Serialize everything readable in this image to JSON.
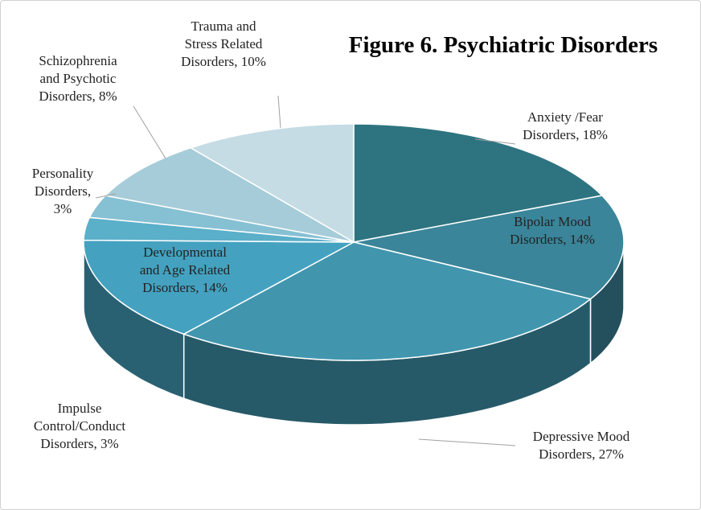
{
  "chart_data": {
    "type": "pie3d",
    "title": "Figure 6. Psychiatric Disorders",
    "values": [
      18,
      14,
      27,
      14,
      3,
      3,
      8,
      10
    ],
    "value_labels": [
      "Anxiety /Fear\nDisorders, 18%",
      "Bipolar Mood\nDisorders, 14%",
      "Depressive Mood\nDisorders, 27%",
      "Developmental\nand Age Related\nDisorders, 14%",
      "Impulse\nControl/Conduct\nDisorders, 3%",
      "Personality\nDisorders,\n3%",
      "Schizophrenia\nand Psychotic\nDisorders, 8%",
      "Trauma and\nStress Related\nDisorders, 10%"
    ],
    "colors": [
      "#2e7480",
      "#3a8599",
      "#4196ae",
      "#44a2c0",
      "#5aafc9",
      "#86c0d3",
      "#a6ccd9",
      "#c5dce5"
    ]
  }
}
